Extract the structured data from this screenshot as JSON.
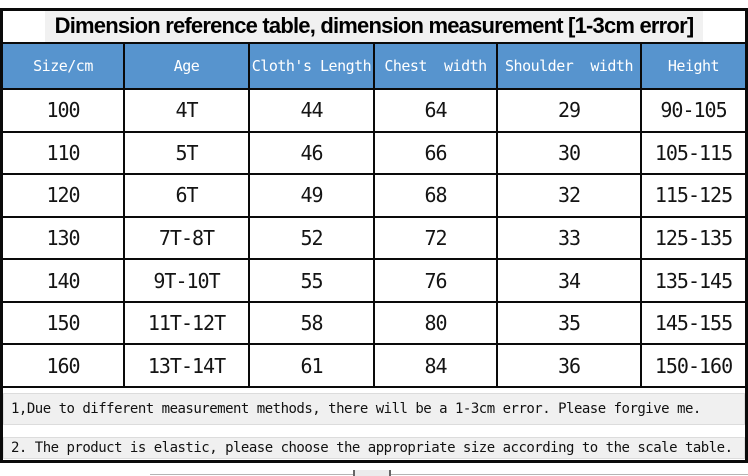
{
  "title": "Dimension reference table, dimension measurement [1-3cm error]",
  "table": {
    "headers": [
      "Size/cm",
      "Age",
      "Cloth's Length",
      "Chest  width",
      "Shoulder  width",
      "Height"
    ],
    "rows": [
      [
        "100",
        "4T",
        "44",
        "64",
        "29",
        "90-105"
      ],
      [
        "110",
        "5T",
        "46",
        "66",
        "30",
        "105-115"
      ],
      [
        "120",
        "6T",
        "49",
        "68",
        "32",
        "115-125"
      ],
      [
        "130",
        "7T-8T",
        "52",
        "72",
        "33",
        "125-135"
      ],
      [
        "140",
        "9T-10T",
        "55",
        "76",
        "34",
        "135-145"
      ],
      [
        "150",
        "11T-12T",
        "58",
        "80",
        "35",
        "145-155"
      ],
      [
        "160",
        "13T-14T",
        "61",
        "84",
        "36",
        "150-160"
      ]
    ]
  },
  "notes": [
    "1,Due to different measurement methods, there will be a 1-3cm error. Please forgive me.",
    "2. The product is elastic, please choose the appropriate size according to the scale table."
  ],
  "colors": {
    "header_bg": "#5794CE",
    "header_text": "#ffffff",
    "grid_border": "#0a0a0a",
    "note_bg": "#f0f0f0",
    "body_text": "#141414"
  }
}
